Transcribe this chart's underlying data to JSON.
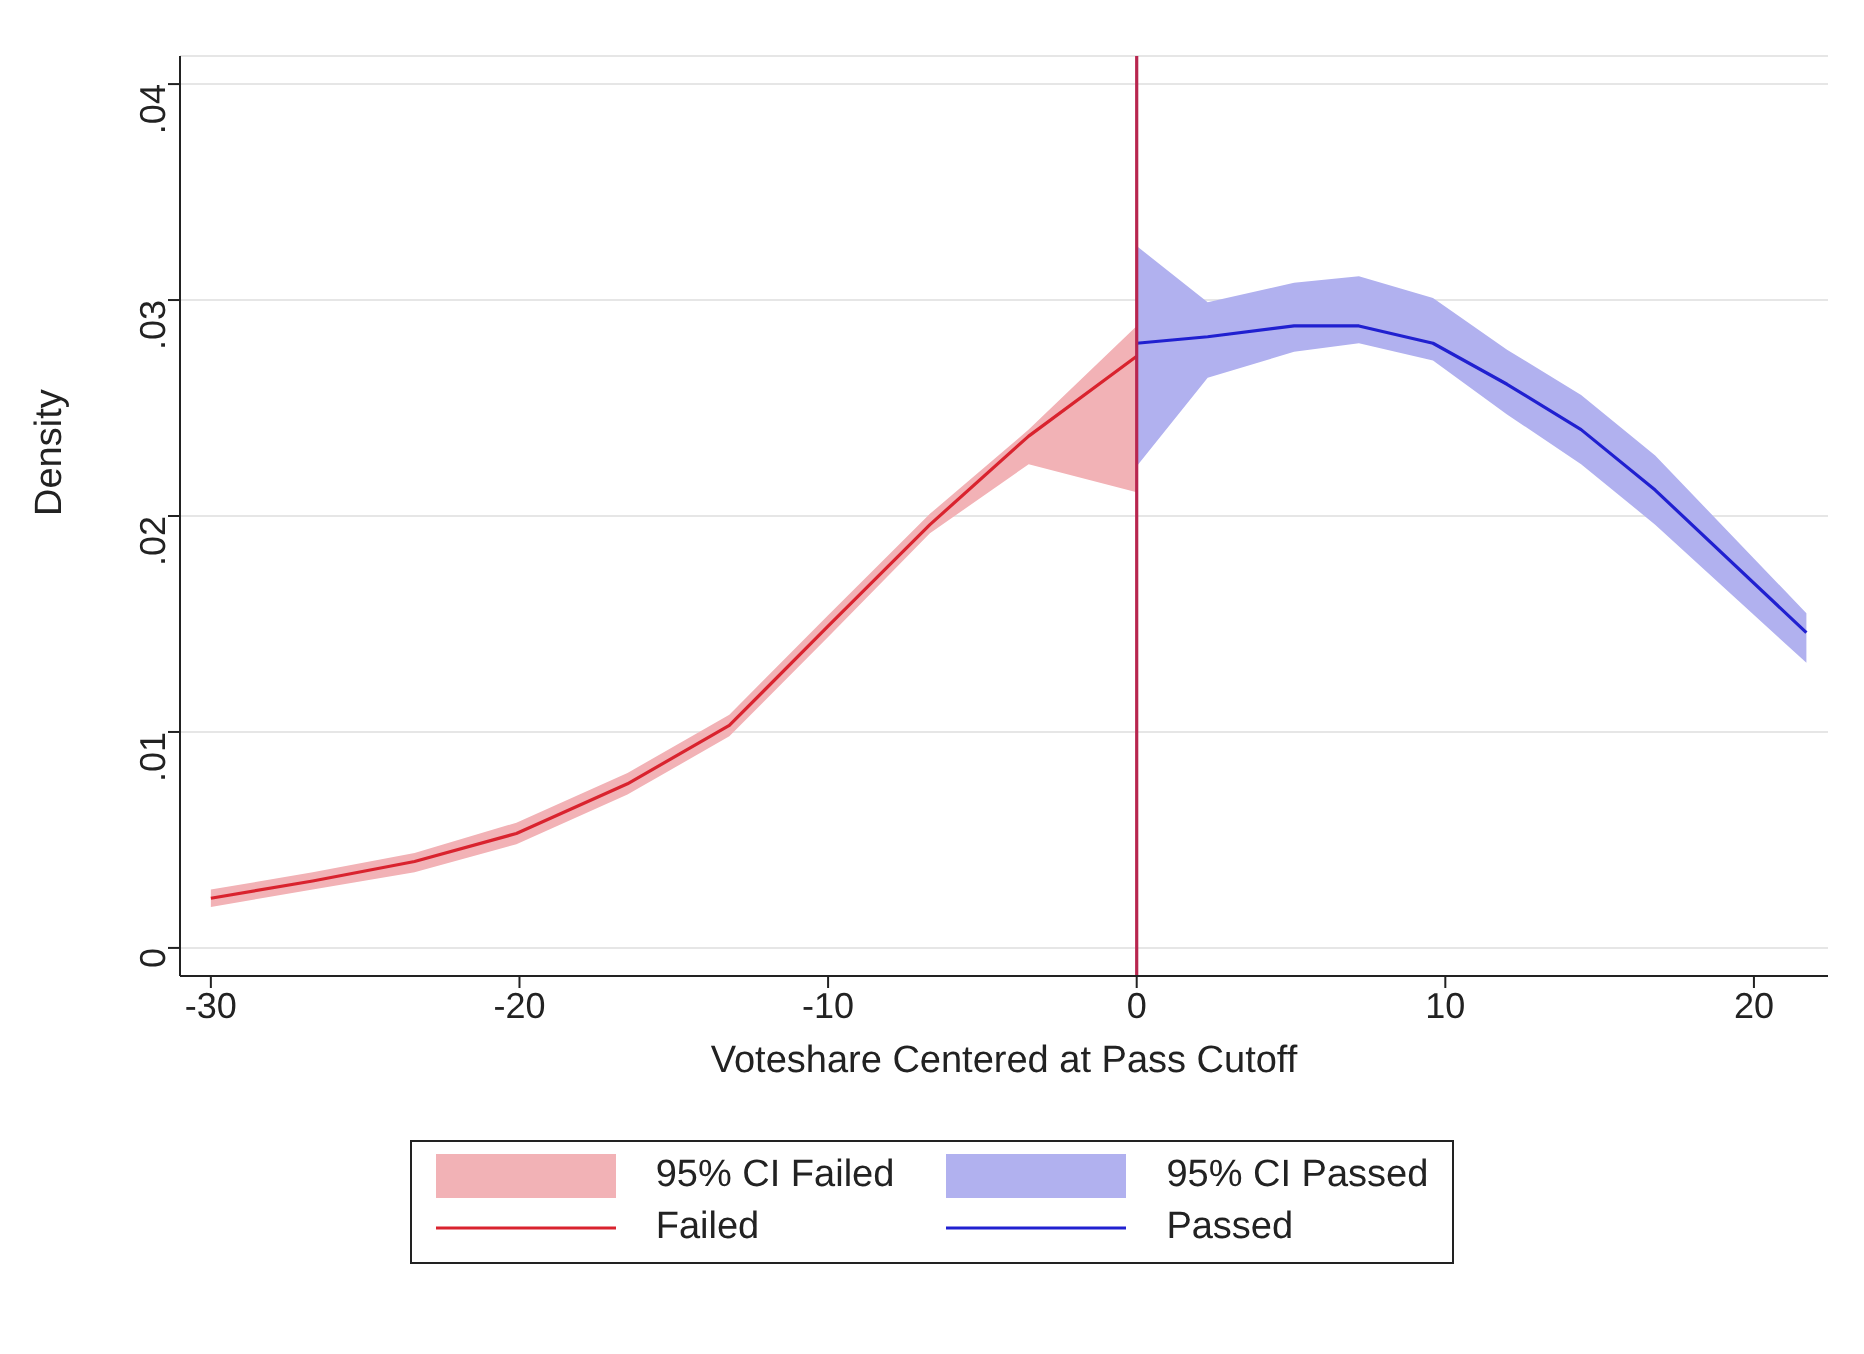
{
  "chart_data": {
    "type": "line",
    "xlabel": "Voteshare Centered at Pass Cutoff",
    "ylabel": "Density",
    "xlim": [
      -31,
      22.4
    ],
    "xticks": [
      -30,
      -20,
      -10,
      0,
      10,
      20
    ],
    "ylim": [
      -0.0013,
      0.0413
    ],
    "yticks": [
      {
        "value": 0,
        "label": "0"
      },
      {
        "value": 0.01,
        "label": ".01"
      },
      {
        "value": 0.02,
        "label": ".02"
      },
      {
        "value": 0.03,
        "label": ".03"
      },
      {
        "value": 0.04,
        "label": ".04"
      }
    ],
    "grid": "y",
    "legend": "bottom",
    "marker": "none",
    "annotations": [
      "95% CI Failed",
      "95% CI Passed"
    ],
    "ref_lines": [
      {
        "axis": "x",
        "value": 0,
        "color": "#b8264f"
      }
    ],
    "series": [
      {
        "name": "Failed",
        "color": "#d9232e",
        "x": [
          -30,
          -26.7,
          -23.4,
          -20.1,
          -16.5,
          -13.2,
          -10,
          -6.7,
          -3.5,
          0
        ],
        "values": [
          0.0023,
          0.0031,
          0.004,
          0.0053,
          0.0076,
          0.0103,
          0.0149,
          0.0196,
          0.0237,
          0.0274
        ],
        "lower": [
          0.0019,
          0.0027,
          0.0035,
          0.0048,
          0.0071,
          0.0098,
          0.0144,
          0.0192,
          0.0224,
          0.0211
        ],
        "upper": [
          0.0027,
          0.0035,
          0.0044,
          0.0058,
          0.0081,
          0.0108,
          0.0154,
          0.0201,
          0.024,
          0.0288
        ]
      },
      {
        "name": "Passed",
        "color": "#2020d0",
        "x": [
          0,
          2.3,
          5.1,
          7.2,
          9.6,
          12,
          14.4,
          16.8,
          21.7
        ],
        "values": [
          0.028,
          0.0283,
          0.0288,
          0.0288,
          0.028,
          0.0261,
          0.024,
          0.0212,
          0.0146
        ],
        "lower": [
          0.0223,
          0.0264,
          0.0276,
          0.028,
          0.0272,
          0.0247,
          0.0224,
          0.0196,
          0.0132
        ],
        "upper": [
          0.0325,
          0.0299,
          0.0308,
          0.0311,
          0.0301,
          0.0277,
          0.0256,
          0.0228,
          0.0155
        ]
      }
    ]
  }
}
